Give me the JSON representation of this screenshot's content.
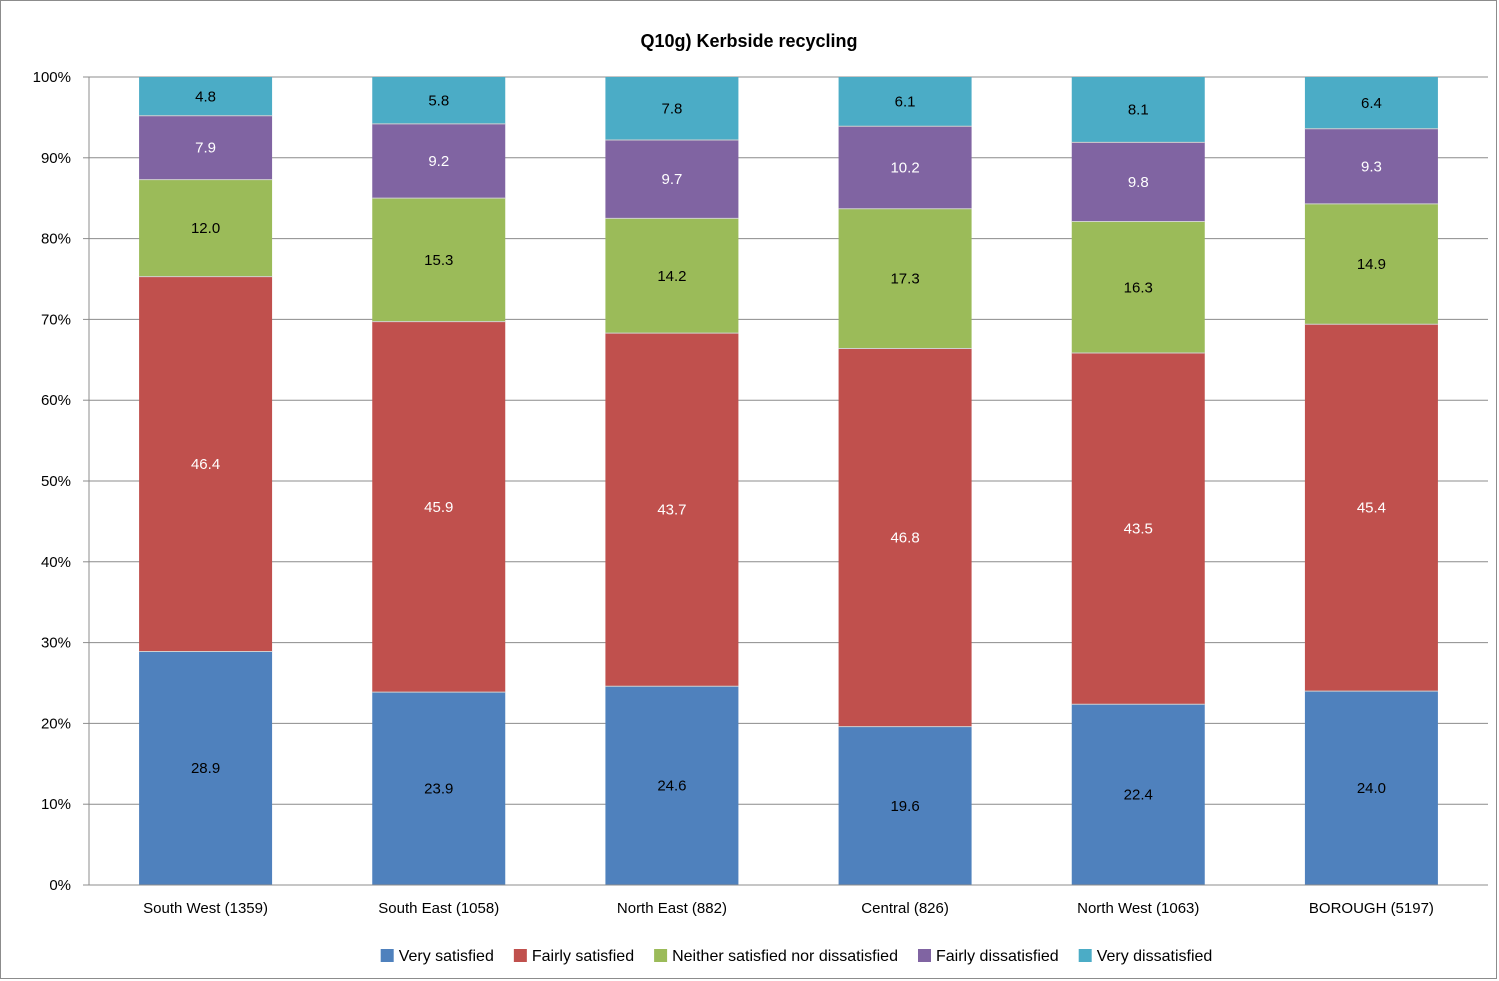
{
  "chart_data": {
    "type": "bar",
    "stacked": true,
    "percent_stacked": true,
    "title": "Q10g) Kerbside recycling",
    "xlabel": "",
    "ylabel": "",
    "ylim": [
      0,
      100
    ],
    "yticks": [
      "0%",
      "10%",
      "20%",
      "30%",
      "40%",
      "50%",
      "60%",
      "70%",
      "80%",
      "90%",
      "100%"
    ],
    "grid": true,
    "legend_position": "bottom",
    "categories": [
      "South West (1359)",
      "South East (1058)",
      "North East (882)",
      "Central (826)",
      "North West (1063)",
      "BOROUGH (5197)"
    ],
    "series": [
      {
        "name": "Very satisfied",
        "color": "#4f81bd",
        "label_color": "#000000",
        "values": [
          28.9,
          23.9,
          24.6,
          19.6,
          22.4,
          24.0
        ],
        "labels": [
          "28.9",
          "23.9",
          "24.6",
          "19.6",
          "22.4",
          "24.0"
        ]
      },
      {
        "name": "Fairly satisfied",
        "color": "#c0504d",
        "label_color": "#ffffff",
        "values": [
          46.4,
          45.9,
          43.7,
          46.8,
          43.5,
          45.4
        ],
        "labels": [
          "46.4",
          "45.9",
          "43.7",
          "46.8",
          "43.5",
          "45.4"
        ]
      },
      {
        "name": "Neither satisfied nor dissatisfied",
        "color": "#9bbb59",
        "label_color": "#000000",
        "values": [
          12.0,
          15.3,
          14.2,
          17.3,
          16.3,
          14.9
        ],
        "labels": [
          "12.0",
          "15.3",
          "14.2",
          "17.3",
          "16.3",
          "14.9"
        ]
      },
      {
        "name": "Fairly dissatisfied",
        "color": "#8064a2",
        "label_color": "#ffffff",
        "values": [
          7.9,
          9.2,
          9.7,
          10.2,
          9.8,
          9.3
        ],
        "labels": [
          "7.9",
          "9.2",
          "9.7",
          "10.2",
          "9.8",
          "9.3"
        ]
      },
      {
        "name": "Very dissatisfied",
        "color": "#4bacc6",
        "label_color": "#000000",
        "values": [
          4.8,
          5.8,
          7.8,
          6.1,
          8.1,
          6.4
        ],
        "labels": [
          "4.8",
          "5.8",
          "7.8",
          "6.1",
          "8.1",
          "6.4"
        ]
      }
    ]
  }
}
